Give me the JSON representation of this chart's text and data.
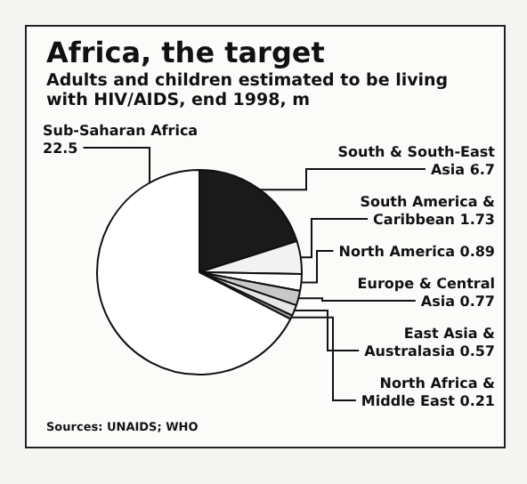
{
  "chart_data": {
    "type": "pie",
    "title": "Africa, the target",
    "subtitle": "Adults and children estimated to be living with HIV/AIDS, end 1998, m",
    "categories": [
      "South & South-East Asia 6.7",
      "South America & Caribbean 1.73",
      "North America 0.89",
      "Europe & Central Asia 0.77",
      "East Asia & Australasia 0.57",
      "North Africa & Middle East 0.21",
      "Sub-Saharan Africa 22.5"
    ],
    "values": [
      6.7,
      1.73,
      0.89,
      0.77,
      0.57,
      0.21,
      22.5
    ],
    "colors": [
      "#1a1a1a",
      "#f2f2f2",
      "#ffffff",
      "#c8c8c8",
      "#e6e6e6",
      "#9a9a9a",
      "#ffffff"
    ],
    "legend": false,
    "annotations": [
      "Sources: UNAIDS; WHO"
    ]
  }
}
